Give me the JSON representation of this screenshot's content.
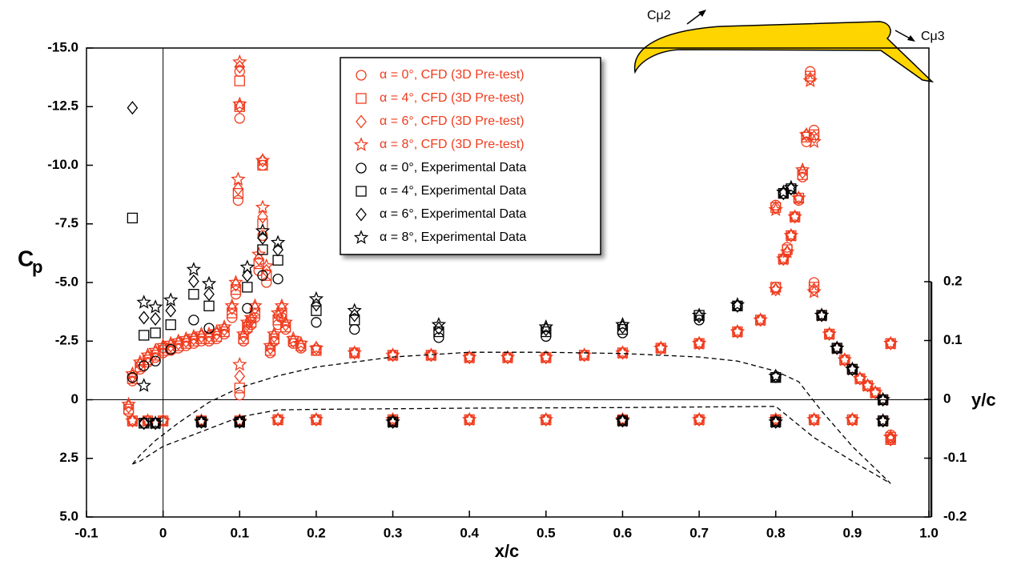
{
  "chart_data": {
    "type": "scatter",
    "xlabel": "x/c",
    "ylabel": "C",
    "ylabel_subscript": "p",
    "y2label": "y/c",
    "annotations": [
      "Cμ2",
      "Cμ3"
    ],
    "xlim": [
      -0.1,
      1.0
    ],
    "xticks": [
      -0.1,
      0,
      0.1,
      0.2,
      0.3,
      0.4,
      0.5,
      0.6,
      0.7,
      0.8,
      0.9,
      {
        "value": 1.0,
        "label": "1.0"
      }
    ],
    "ylim": [
      -15,
      5
    ],
    "invert_y": true,
    "yticks": [
      {
        "value": -15,
        "label": "-15.0"
      },
      -12.5,
      {
        "value": -10,
        "label": "-10.0"
      },
      -7.5,
      {
        "value": -5,
        "label": "-5.0"
      },
      -2.5,
      0,
      2.5,
      {
        "value": 5,
        "label": "5.0"
      }
    ],
    "y2lim": [
      -0.2,
      0.2
    ],
    "y2ticks": [
      -0.2,
      -0.1,
      0,
      0.1,
      0.2
    ],
    "legend": "top-center",
    "series": [
      {
        "name": "α = 0°, CFD (3D Pre-test)",
        "color": "#f03c1e",
        "marker": "circle",
        "x": [
          -0.045,
          -0.04,
          -0.03,
          -0.02,
          -0.01,
          0,
          0.01,
          0.02,
          0.03,
          0.04,
          0.05,
          0.06,
          0.07,
          0.08,
          0.09,
          0.095,
          0.098,
          0.1,
          0.1,
          0.1,
          0.105,
          0.11,
          0.115,
          0.12,
          0.125,
          0.13,
          0.13,
          0.135,
          0.14,
          0.145,
          0.15,
          0.155,
          0.16,
          0.17,
          0.18,
          0.2,
          0.25,
          0.3,
          0.35,
          0.4,
          0.45,
          0.5,
          0.55,
          0.6,
          0.65,
          0.7,
          0.75,
          0.78,
          0.8,
          0.8,
          0.81,
          0.815,
          0.82,
          0.825,
          0.83,
          0.835,
          0.84,
          0.845,
          0.85,
          0.85,
          0.86,
          0.87,
          0.88,
          0.89,
          0.9,
          0.91,
          0.92,
          0.93,
          0.94,
          0.95,
          0.95,
          -0.04,
          -0.02,
          0,
          0.05,
          0.1,
          0.15,
          0.2,
          0.3,
          0.4,
          0.5,
          0.6,
          0.7,
          0.8,
          0.85,
          0.9,
          0.94,
          0.95
        ],
        "values": [
          0.5,
          -0.8,
          -1.3,
          -1.6,
          -1.8,
          -2.0,
          -2.1,
          -2.2,
          -2.3,
          -2.4,
          -2.5,
          -2.5,
          -2.6,
          -2.8,
          -3.5,
          -4.5,
          -8.5,
          -12.0,
          -14.0,
          -0.2,
          -2.5,
          -3.0,
          -3.2,
          -3.5,
          -5.5,
          -7.0,
          -10.0,
          -5.0,
          -2.0,
          -2.5,
          -3.2,
          -3.5,
          -3.0,
          -2.4,
          -2.2,
          -2.1,
          -2.0,
          -1.9,
          -1.9,
          -1.8,
          -1.8,
          -1.8,
          -1.9,
          -2.0,
          -2.2,
          -2.4,
          -2.9,
          -3.4,
          -4.8,
          -8.3,
          -6.0,
          -6.5,
          -7.0,
          -7.8,
          -8.5,
          -9.5,
          -11.0,
          -14.0,
          -11.5,
          -5.0,
          -3.6,
          -2.8,
          -2.2,
          -1.7,
          -1.3,
          -0.9,
          -0.6,
          -0.3,
          0,
          -2.4,
          1.5,
          0.9,
          0.9,
          0.9,
          0.9,
          0.9,
          0.85,
          0.85,
          0.85,
          0.85,
          0.85,
          0.85,
          0.85,
          0.85,
          0.85,
          0.85,
          0.9,
          1.7
        ]
      },
      {
        "name": "α = 4°, CFD (3D Pre-test)",
        "color": "#f03c1e",
        "marker": "square",
        "x": [
          -0.045,
          -0.04,
          -0.03,
          -0.02,
          -0.01,
          0,
          0.01,
          0.02,
          0.03,
          0.04,
          0.05,
          0.06,
          0.07,
          0.08,
          0.09,
          0.095,
          0.098,
          0.1,
          0.1,
          0.1,
          0.105,
          0.11,
          0.115,
          0.12,
          0.125,
          0.13,
          0.13,
          0.135,
          0.14,
          0.145,
          0.15,
          0.155,
          0.16,
          0.17,
          0.18,
          0.2,
          0.25,
          0.3,
          0.35,
          0.4,
          0.45,
          0.5,
          0.55,
          0.6,
          0.65,
          0.7,
          0.75,
          0.78,
          0.8,
          0.8,
          0.81,
          0.815,
          0.82,
          0.825,
          0.83,
          0.835,
          0.84,
          0.845,
          0.85,
          0.85,
          0.86,
          0.87,
          0.88,
          0.89,
          0.9,
          0.91,
          0.92,
          0.93,
          0.94,
          0.95,
          0.95,
          -0.04,
          -0.02,
          0,
          0.05,
          0.1,
          0.15,
          0.2,
          0.3,
          0.4,
          0.5,
          0.6,
          0.7,
          0.8,
          0.85,
          0.9,
          0.94,
          0.95
        ],
        "values": [
          0.4,
          -0.9,
          -1.4,
          -1.7,
          -1.9,
          -2.1,
          -2.2,
          -2.3,
          -2.4,
          -2.5,
          -2.6,
          -2.6,
          -2.7,
          -2.9,
          -3.7,
          -4.7,
          -8.8,
          -12.5,
          -13.6,
          -0.5,
          -2.6,
          -3.1,
          -3.3,
          -3.7,
          -5.8,
          -7.5,
          -10.0,
          -5.3,
          -2.1,
          -2.6,
          -3.4,
          -3.7,
          -3.1,
          -2.5,
          -2.3,
          -2.1,
          -2.0,
          -1.9,
          -1.9,
          -1.8,
          -1.8,
          -1.8,
          -1.9,
          -2.0,
          -2.2,
          -2.4,
          -2.9,
          -3.4,
          -4.8,
          -8.2,
          -6.0,
          -6.4,
          -7.0,
          -7.8,
          -8.6,
          -9.6,
          -11.2,
          -13.8,
          -11.3,
          -4.8,
          -3.6,
          -2.8,
          -2.2,
          -1.7,
          -1.3,
          -0.9,
          -0.6,
          -0.3,
          0,
          -2.4,
          1.6,
          0.9,
          0.9,
          0.9,
          0.9,
          0.9,
          0.85,
          0.85,
          0.85,
          0.85,
          0.85,
          0.85,
          0.85,
          0.85,
          0.85,
          0.85,
          0.9,
          1.7
        ]
      },
      {
        "name": "α = 6°, CFD (3D Pre-test)",
        "color": "#f03c1e",
        "marker": "diamond",
        "x": [
          -0.045,
          -0.04,
          -0.03,
          -0.02,
          -0.01,
          0,
          0.01,
          0.02,
          0.03,
          0.04,
          0.05,
          0.06,
          0.07,
          0.08,
          0.09,
          0.095,
          0.098,
          0.1,
          0.1,
          0.1,
          0.105,
          0.11,
          0.115,
          0.12,
          0.125,
          0.13,
          0.13,
          0.135,
          0.14,
          0.145,
          0.15,
          0.155,
          0.16,
          0.17,
          0.18,
          0.2,
          0.25,
          0.3,
          0.35,
          0.4,
          0.45,
          0.5,
          0.55,
          0.6,
          0.65,
          0.7,
          0.75,
          0.78,
          0.8,
          0.8,
          0.81,
          0.815,
          0.82,
          0.825,
          0.83,
          0.835,
          0.84,
          0.845,
          0.85,
          0.85,
          0.86,
          0.87,
          0.88,
          0.89,
          0.9,
          0.91,
          0.92,
          0.93,
          0.94,
          0.95,
          0.95,
          -0.04,
          -0.02,
          0,
          0.05,
          0.1,
          0.15,
          0.2,
          0.3,
          0.4,
          0.5,
          0.6,
          0.7,
          0.8,
          0.85,
          0.9,
          0.94,
          0.95
        ],
        "values": [
          0.3,
          -1.0,
          -1.5,
          -1.8,
          -2.0,
          -2.2,
          -2.3,
          -2.4,
          -2.5,
          -2.6,
          -2.7,
          -2.7,
          -2.8,
          -3.0,
          -3.9,
          -4.9,
          -9.0,
          -12.5,
          -14.2,
          -1.0,
          -2.7,
          -3.2,
          -3.4,
          -3.9,
          -6.0,
          -7.8,
          -10.2,
          -5.5,
          -2.2,
          -2.7,
          -3.6,
          -3.9,
          -3.2,
          -2.5,
          -2.3,
          -2.2,
          -2.0,
          -1.9,
          -1.9,
          -1.8,
          -1.8,
          -1.8,
          -1.9,
          -2.0,
          -2.2,
          -2.4,
          -2.9,
          -3.4,
          -4.7,
          -8.2,
          -6.0,
          -6.3,
          -7.0,
          -7.8,
          -8.6,
          -9.7,
          -11.3,
          -13.7,
          -11.2,
          -4.7,
          -3.6,
          -2.8,
          -2.2,
          -1.7,
          -1.3,
          -0.9,
          -0.6,
          -0.3,
          0,
          -2.4,
          1.6,
          0.9,
          0.9,
          0.9,
          0.9,
          0.9,
          0.85,
          0.85,
          0.85,
          0.85,
          0.85,
          0.85,
          0.85,
          0.85,
          0.85,
          0.85,
          0.9,
          1.7
        ]
      },
      {
        "name": "α = 8°, CFD (3D Pre-test)",
        "color": "#f03c1e",
        "marker": "star",
        "x": [
          -0.045,
          -0.04,
          -0.03,
          -0.02,
          -0.01,
          0,
          0.01,
          0.02,
          0.03,
          0.04,
          0.05,
          0.06,
          0.07,
          0.08,
          0.09,
          0.095,
          0.098,
          0.1,
          0.1,
          0.1,
          0.105,
          0.11,
          0.115,
          0.12,
          0.125,
          0.13,
          0.13,
          0.135,
          0.14,
          0.145,
          0.15,
          0.155,
          0.16,
          0.17,
          0.18,
          0.2,
          0.25,
          0.3,
          0.35,
          0.4,
          0.45,
          0.5,
          0.55,
          0.6,
          0.65,
          0.7,
          0.75,
          0.78,
          0.8,
          0.8,
          0.81,
          0.815,
          0.82,
          0.825,
          0.83,
          0.835,
          0.84,
          0.845,
          0.85,
          0.85,
          0.86,
          0.87,
          0.88,
          0.89,
          0.9,
          0.91,
          0.92,
          0.93,
          0.94,
          0.95,
          0.95,
          -0.04,
          -0.02,
          0,
          0.05,
          0.1,
          0.15,
          0.2,
          0.3,
          0.4,
          0.5,
          0.6,
          0.7,
          0.8,
          0.85,
          0.9,
          0.94,
          0.95
        ],
        "values": [
          0.2,
          -1.1,
          -1.6,
          -1.9,
          -2.1,
          -2.3,
          -2.4,
          -2.5,
          -2.6,
          -2.7,
          -2.8,
          -2.8,
          -2.9,
          -3.1,
          -4.0,
          -5.0,
          -9.4,
          -12.6,
          -14.4,
          -1.5,
          -2.8,
          -3.3,
          -3.5,
          -4.0,
          -6.2,
          -8.2,
          -10.2,
          -5.7,
          -2.3,
          -2.8,
          -3.7,
          -4.0,
          -3.3,
          -2.6,
          -2.4,
          -2.2,
          -2.0,
          -1.9,
          -1.9,
          -1.8,
          -1.8,
          -1.8,
          -1.9,
          -2.0,
          -2.2,
          -2.4,
          -2.9,
          -3.4,
          -4.7,
          -8.1,
          -6.0,
          -6.3,
          -7.0,
          -7.8,
          -8.6,
          -9.8,
          -11.3,
          -13.6,
          -11.0,
          -4.6,
          -3.6,
          -2.8,
          -2.2,
          -1.7,
          -1.3,
          -0.9,
          -0.6,
          -0.3,
          0,
          -2.4,
          1.6,
          0.9,
          0.9,
          0.9,
          0.9,
          0.9,
          0.85,
          0.85,
          0.85,
          0.85,
          0.85,
          0.85,
          0.85,
          0.85,
          0.85,
          0.85,
          0.9,
          1.6
        ]
      },
      {
        "name": "α = 0°, Experimental Data",
        "color": "#000000",
        "marker": "circle",
        "x": [
          -0.04,
          -0.025,
          -0.01,
          0.01,
          0.04,
          0.06,
          0.11,
          0.13,
          0.15,
          0.2,
          0.25,
          0.36,
          0.5,
          0.6,
          0.7,
          0.75,
          0.8,
          0.81,
          0.86,
          0.88,
          0.9,
          0.94,
          0.94,
          0.8,
          0.6,
          0.3,
          0.1,
          0.05,
          -0.01,
          -0.025
        ],
        "values": [
          -0.95,
          -1.45,
          -1.65,
          -2.15,
          -3.4,
          -3.05,
          -3.9,
          -5.3,
          -5.15,
          -3.3,
          -3.0,
          -2.65,
          -2.7,
          -2.85,
          -3.4,
          -4.0,
          -0.95,
          -8.8,
          -3.6,
          -2.2,
          -1.3,
          0.0,
          0.9,
          0.95,
          0.9,
          0.95,
          0.95,
          0.95,
          1.0,
          1.0
        ]
      },
      {
        "name": "α = 4°, Experimental Data",
        "color": "#000000",
        "marker": "square",
        "x": [
          -0.04,
          -0.025,
          -0.01,
          0.01,
          0.04,
          0.06,
          0.11,
          0.13,
          0.15,
          0.2,
          0.25,
          0.36,
          0.5,
          0.6,
          0.7,
          0.75,
          0.8,
          0.81,
          0.82,
          0.86,
          0.88,
          0.9,
          0.94,
          0.94,
          0.8,
          0.6,
          0.3,
          0.1,
          0.05,
          -0.01,
          -0.025
        ],
        "values": [
          -7.75,
          -2.75,
          -2.85,
          -3.2,
          -4.5,
          -4.0,
          -4.8,
          -6.4,
          -5.95,
          -3.8,
          -3.4,
          -2.9,
          -2.9,
          -3.0,
          -3.6,
          -4.0,
          -0.95,
          -8.8,
          -9.0,
          -3.6,
          -2.2,
          -1.3,
          0.0,
          0.9,
          0.95,
          0.9,
          0.95,
          0.95,
          0.95,
          1.0,
          1.0
        ]
      },
      {
        "name": "α = 6°, Experimental Data",
        "color": "#000000",
        "marker": "diamond",
        "x": [
          -0.04,
          -0.025,
          -0.01,
          0.01,
          0.04,
          0.06,
          0.11,
          0.13,
          0.15,
          0.2,
          0.25,
          0.36,
          0.5,
          0.6,
          0.7,
          0.75,
          0.8,
          0.81,
          0.82,
          0.86,
          0.88,
          0.9,
          0.94,
          0.94,
          0.8,
          0.6,
          0.3,
          0.1,
          0.05,
          -0.01,
          -0.025
        ],
        "values": [
          -12.45,
          -3.5,
          -3.45,
          -3.8,
          -5.05,
          -4.5,
          -5.3,
          -6.9,
          -6.4,
          -4.05,
          -3.6,
          -3.05,
          -3.0,
          -3.1,
          -3.55,
          -4.0,
          -1.0,
          -8.8,
          -9.0,
          -3.6,
          -2.2,
          -1.3,
          0.0,
          0.9,
          0.95,
          0.9,
          0.95,
          0.95,
          0.95,
          1.0,
          1.0
        ]
      },
      {
        "name": "α = 8°, Experimental Data",
        "color": "#000000",
        "marker": "star",
        "x": [
          -0.025,
          -0.01,
          0.01,
          0.04,
          0.06,
          0.11,
          0.13,
          0.15,
          0.2,
          0.25,
          0.36,
          0.5,
          0.6,
          0.7,
          0.75,
          0.8,
          0.81,
          0.82,
          0.86,
          0.88,
          0.9,
          0.94,
          0.94,
          0.8,
          0.6,
          0.3,
          0.1,
          0.05,
          -0.01,
          -0.025
        ],
        "values": [
          -4.15,
          -3.95,
          -4.25,
          -5.55,
          -4.95,
          -5.65,
          -7.2,
          -6.7,
          -4.3,
          -3.8,
          -3.2,
          -3.1,
          -3.2,
          -3.6,
          -4.05,
          -1.0,
          -8.85,
          -9.05,
          -3.6,
          -2.2,
          -1.3,
          0.0,
          0.9,
          0.95,
          0.9,
          0.95,
          0.95,
          0.95,
          1.0,
          -0.6
        ]
      },
      {
        "axis": "y2",
        "color": "#000000",
        "marker": "none",
        "style": "dashed",
        "x": [
          -0.04,
          -0.03,
          -0.01,
          0.02,
          0.06,
          0.1,
          0.15,
          0.2,
          0.3,
          0.4,
          0.5,
          0.6,
          0.7,
          0.75,
          0.8,
          0.83,
          0.86,
          0.9,
          0.95,
          0.9,
          0.85,
          0.8,
          0.6,
          0.4,
          0.2,
          0.15,
          0.1,
          0.05,
          0.0,
          -0.03,
          -0.04
        ],
        "values": [
          -0.11,
          -0.095,
          -0.07,
          -0.04,
          -0.005,
          0.02,
          0.04,
          0.055,
          0.072,
          0.08,
          0.08,
          0.078,
          0.072,
          0.065,
          0.048,
          0.03,
          -0.02,
          -0.08,
          -0.143,
          -0.105,
          -0.065,
          -0.012,
          -0.014,
          -0.015,
          -0.017,
          -0.018,
          -0.03,
          -0.055,
          -0.08,
          -0.105,
          -0.11
        ]
      }
    ]
  }
}
